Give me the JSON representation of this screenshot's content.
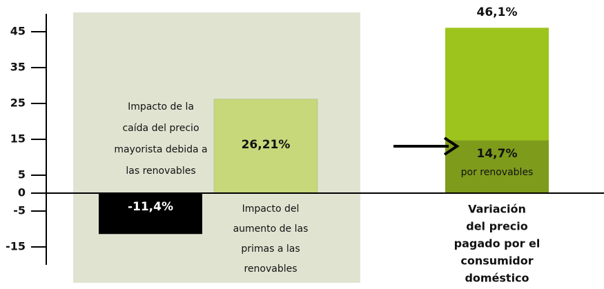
{
  "chart_data": {
    "type": "bar",
    "ylim": [
      -20,
      50
    ],
    "yticks": [
      45,
      35,
      25,
      15,
      5,
      0,
      -5,
      -15
    ],
    "bars": [
      {
        "value": -11.4,
        "value_label": "-11,4%",
        "color": "#000000"
      },
      {
        "value": 26.21,
        "value_label": "26,21%",
        "color": "#c6d87a"
      },
      {
        "value": 46.1,
        "value_label": "46,1%",
        "color": "#9dc41d"
      }
    ],
    "segment": {
      "value": 14.7,
      "value_label": "14,7%",
      "subtitle": "por renovables",
      "color": "#7e9b1c"
    },
    "annotations": [
      {
        "lines": [
          "Impacto de la",
          "caída del precio",
          "mayorista debida a",
          "las renovables"
        ]
      },
      {
        "lines": [
          "Impacto del",
          "aumento de las",
          "primas a las",
          "renovables"
        ]
      },
      {
        "lines": [
          "Variación",
          "del precio",
          "pagado por el",
          "consumidor",
          "doméstico"
        ]
      }
    ]
  }
}
